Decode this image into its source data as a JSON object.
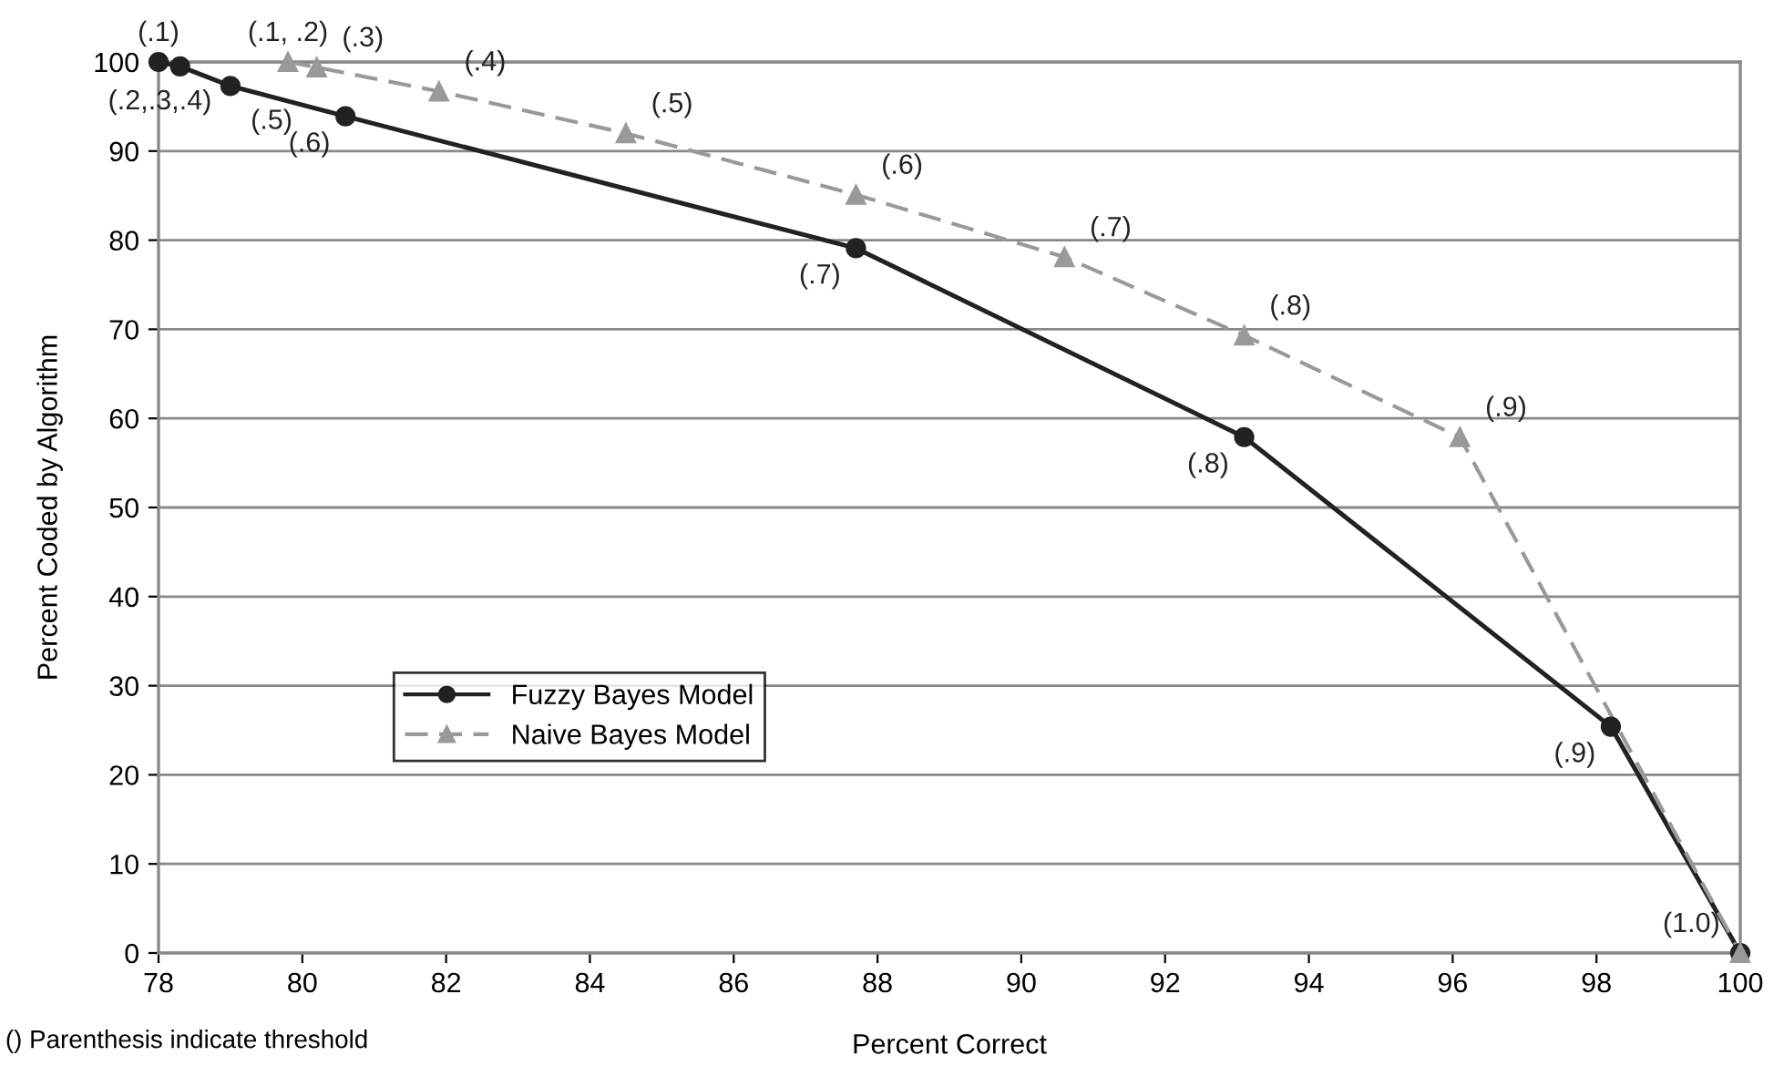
{
  "chart_data": {
    "type": "line",
    "xlabel": "Percent Correct",
    "ylabel": "Percent Coded by Algorithm",
    "xlim": [
      78,
      100
    ],
    "xticks": [
      78,
      80,
      82,
      84,
      86,
      88,
      90,
      92,
      94,
      96,
      98,
      100
    ],
    "ylim": [
      0,
      100
    ],
    "yticks": [
      0,
      10,
      20,
      30,
      40,
      50,
      60,
      70,
      80,
      90,
      100
    ],
    "grid": "y",
    "legend": "lower left",
    "series": [
      {
        "name": "Fuzzy Bayes Model",
        "color": "#222222",
        "marker": "circle",
        "line_style": "solid",
        "x": [
          78.0,
          78.3,
          79.0,
          80.6,
          87.7,
          93.1,
          98.2,
          100.0
        ],
        "values": [
          100,
          99.5,
          97.3,
          93.9,
          79.1,
          57.9,
          25.4,
          0
        ]
      },
      {
        "name": "Naive Bayes Model",
        "color": "#999999",
        "marker": "triangle",
        "line_style": "dashed",
        "x": [
          79.8,
          80.2,
          81.9,
          84.5,
          87.7,
          90.6,
          93.1,
          96.1,
          100.0
        ],
        "values": [
          100,
          99.4,
          96.7,
          92.0,
          85.1,
          78.1,
          69.3,
          57.9,
          0
        ]
      }
    ],
    "annotations": [
      {
        "text": "(.1)",
        "x": 78.0,
        "y": 100
      },
      {
        "text": "(.2,.3,.4)",
        "x": 78.3,
        "y": 99.5
      },
      {
        "text": "(.5)",
        "x": 79.0,
        "y": 97.3
      },
      {
        "text": "(.6)",
        "x": 80.6,
        "y": 93.9
      },
      {
        "text": "(.7)",
        "x": 87.7,
        "y": 79.1
      },
      {
        "text": "(.8)",
        "x": 93.1,
        "y": 57.9
      },
      {
        "text": "(.9)",
        "x": 98.2,
        "y": 25.4
      },
      {
        "text": "(.1, .2)",
        "x": 79.8,
        "y": 100
      },
      {
        "text": "(.3)",
        "x": 80.2,
        "y": 99.4
      },
      {
        "text": "(.4)",
        "x": 81.9,
        "y": 96.7
      },
      {
        "text": "(.5)",
        "x": 84.5,
        "y": 92.0
      },
      {
        "text": "(.6)",
        "x": 87.7,
        "y": 85.1
      },
      {
        "text": "(.7)",
        "x": 90.6,
        "y": 78.1
      },
      {
        "text": "(.8)",
        "x": 93.1,
        "y": 69.3
      },
      {
        "text": "(.9)",
        "x": 96.1,
        "y": 57.9
      },
      {
        "text": "(1.0)",
        "x": 100.0,
        "y": 0
      },
      "() Parenthesis indicate threshold"
    ]
  }
}
